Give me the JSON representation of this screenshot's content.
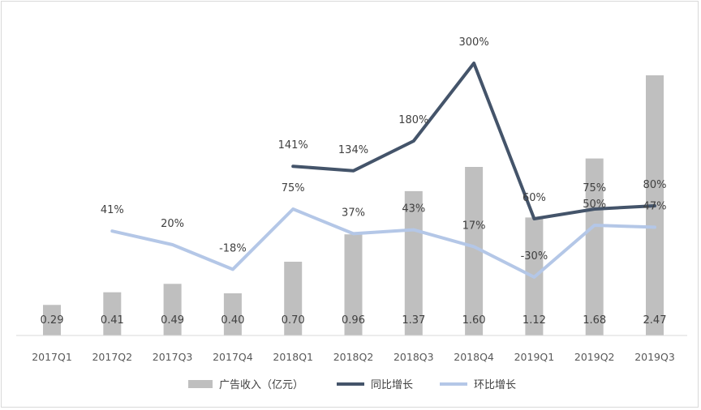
{
  "chart_data": {
    "type": "bar",
    "categories": [
      "2017Q1",
      "2017Q2",
      "2017Q3",
      "2017Q4",
      "2018Q1",
      "2018Q2",
      "2018Q3",
      "2018Q4",
      "2019Q1",
      "2019Q2",
      "2019Q3"
    ],
    "series": [
      {
        "name": "广告收入（亿元）",
        "type": "bar",
        "color": "#bfbfbf",
        "values": [
          0.29,
          0.41,
          0.49,
          0.4,
          0.7,
          0.96,
          1.37,
          1.6,
          1.12,
          1.68,
          2.47
        ],
        "labels": [
          "0.29",
          "0.41",
          "0.49",
          "0.40",
          "0.70",
          "0.96",
          "1.37",
          "1.60",
          "1.12",
          "1.68",
          "2.47"
        ]
      },
      {
        "name": "同比增长",
        "type": "line",
        "color": "#44546a",
        "values": [
          null,
          null,
          null,
          null,
          141,
          134,
          180,
          300,
          60,
          75,
          80
        ],
        "labels": [
          "",
          "",
          "",
          "",
          "141%",
          "134%",
          "180%",
          "300%",
          "60%",
          "75%",
          "80%"
        ]
      },
      {
        "name": "环比增长",
        "type": "line",
        "color": "#b4c7e7",
        "values": [
          null,
          41,
          20,
          -18,
          75,
          37,
          43,
          17,
          -30,
          50,
          47
        ],
        "labels": [
          "",
          "41%",
          "20%",
          "-18%",
          "75%",
          "37%",
          "43%",
          "17%",
          "-30%",
          "50%",
          "47%"
        ]
      }
    ],
    "legend_position": "bottom",
    "grid": false
  }
}
